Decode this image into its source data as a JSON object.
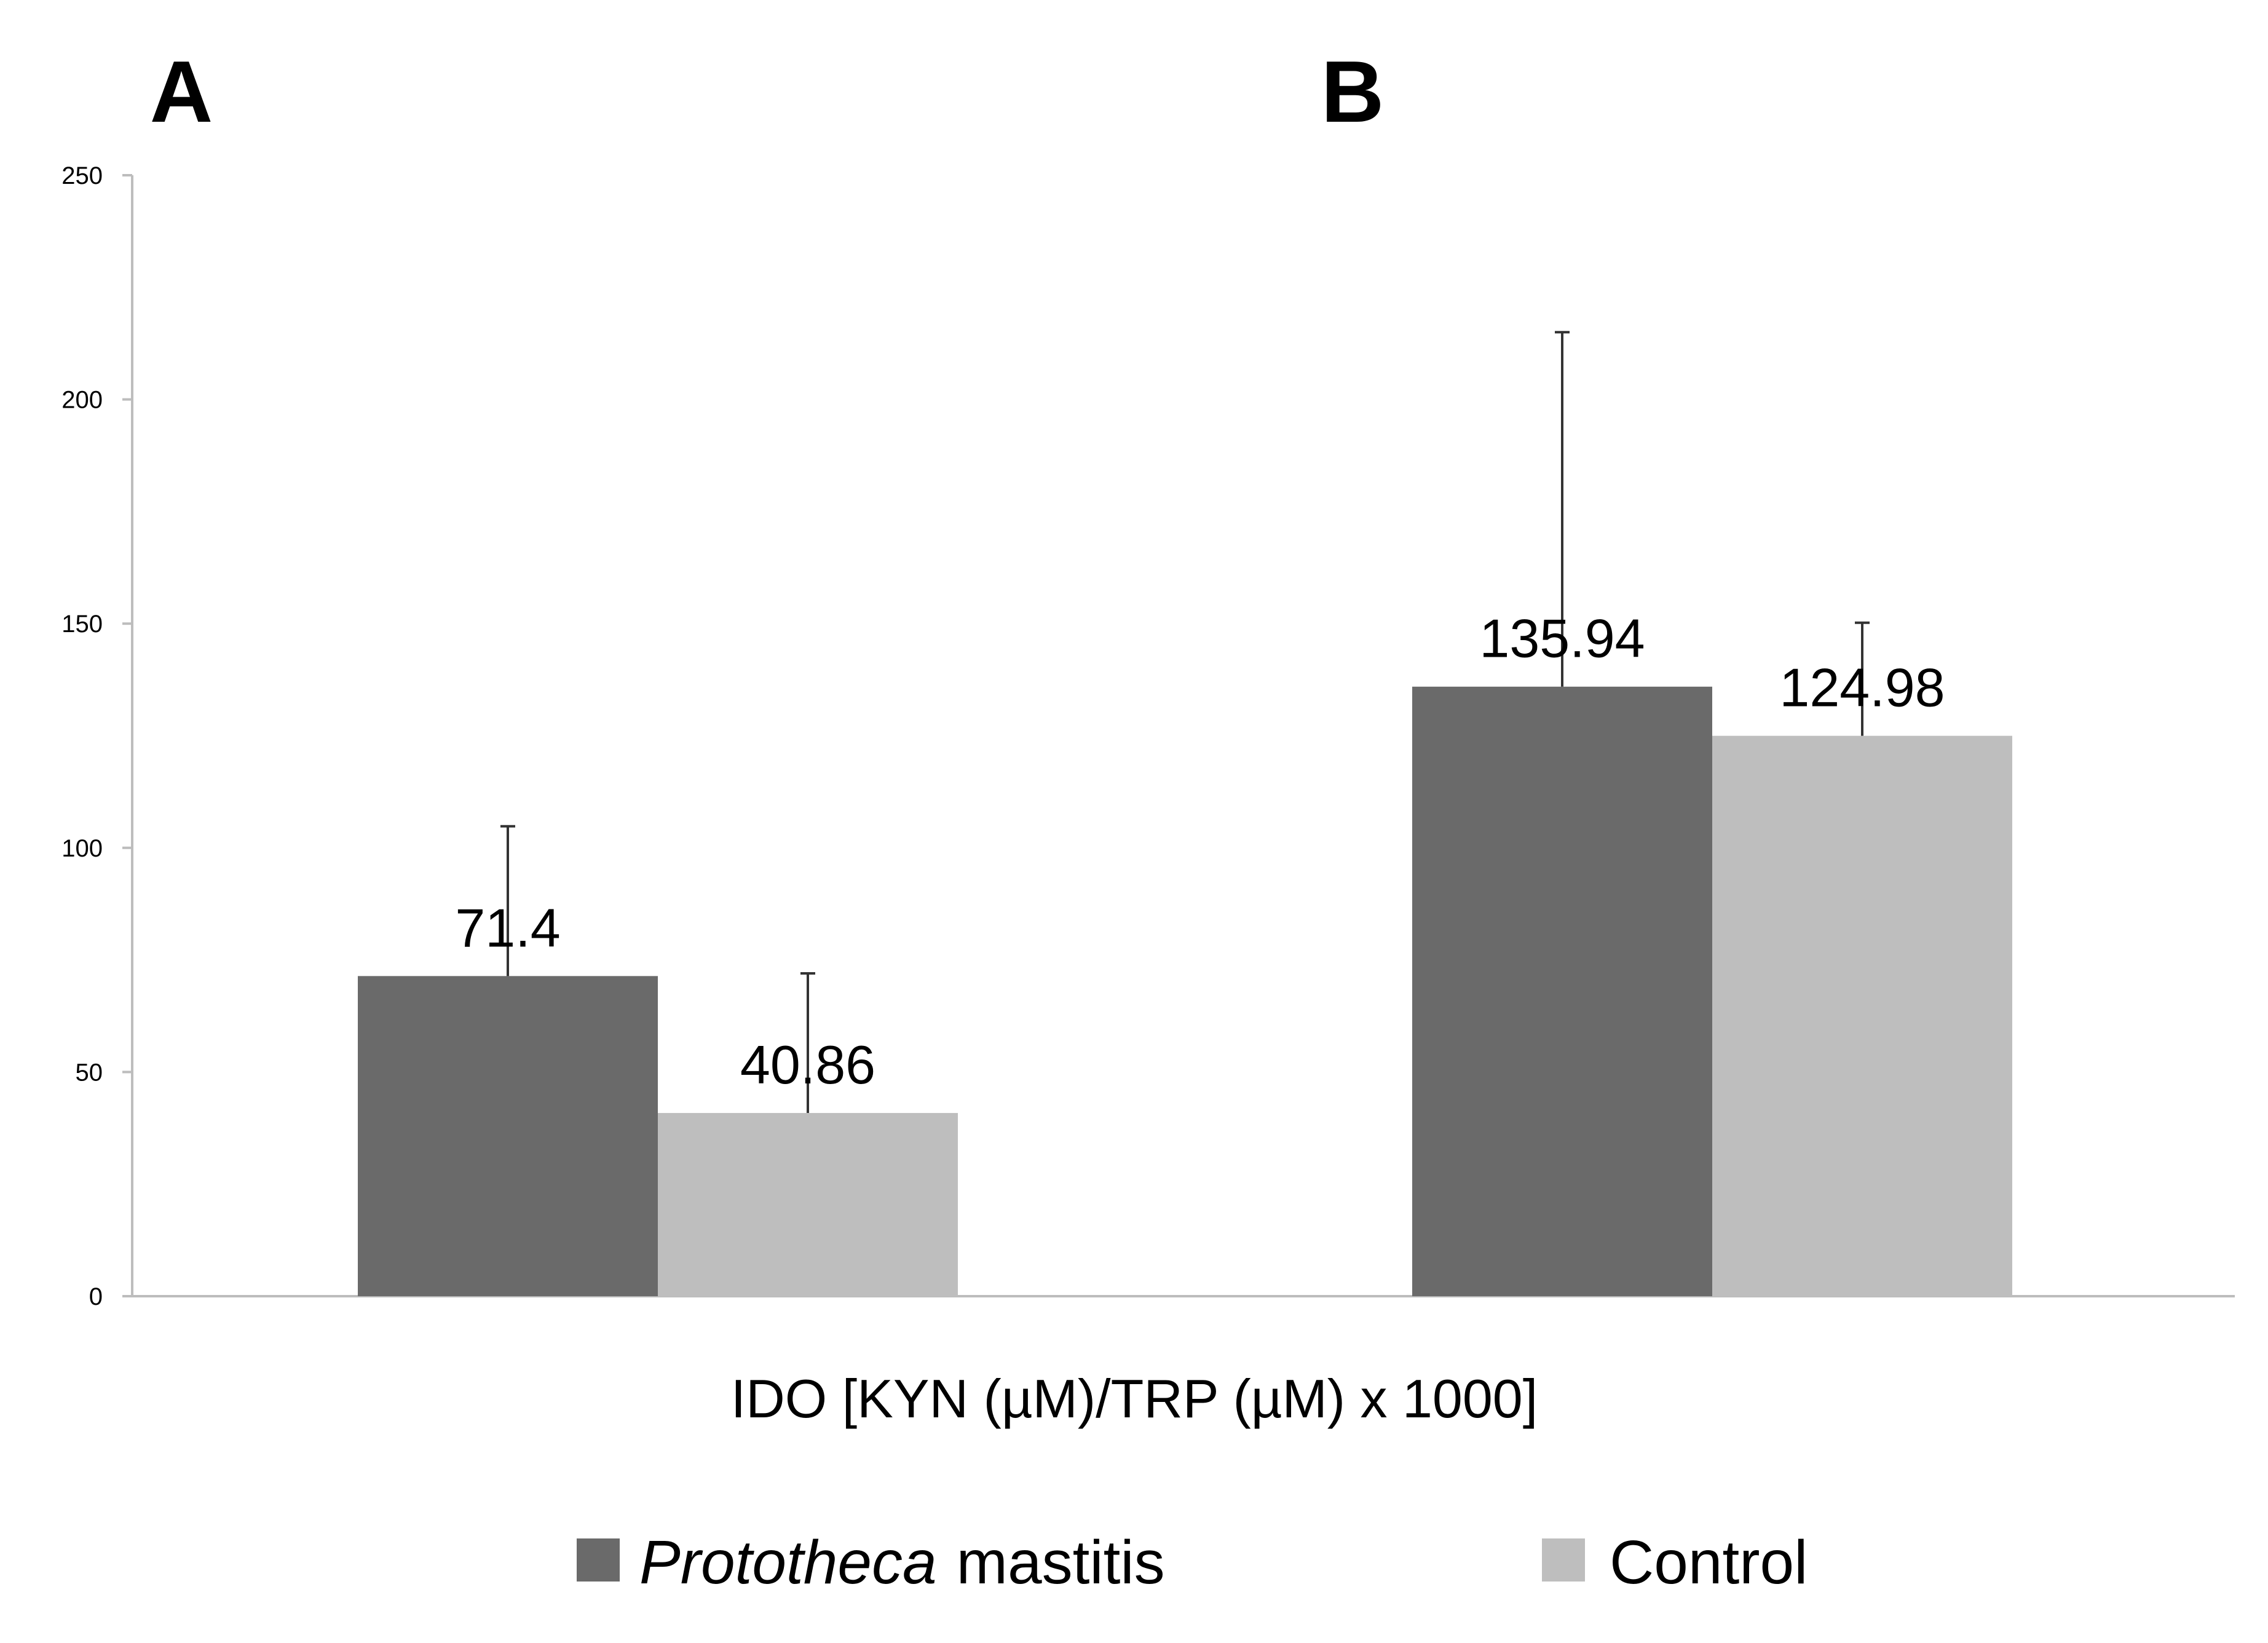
{
  "panel_labels": [
    "A",
    "B"
  ],
  "chart_data": {
    "type": "bar",
    "title": "",
    "categories": [
      "A",
      "B"
    ],
    "series": [
      {
        "name": "Prototheca mastitis",
        "name_italic": "Prototheca",
        "name_rest": "mastitis",
        "values": [
          71.4,
          135.94
        ],
        "error_upper": [
          104.8,
          215.0
        ],
        "color": "#6a6a6a"
      },
      {
        "name": "Control",
        "values": [
          40.86,
          124.98
        ],
        "error_upper": [
          72.0,
          150.2
        ],
        "color": "#bebebe"
      }
    ],
    "data_labels": [
      [
        "71.4",
        "135.94"
      ],
      [
        "40.86",
        "124.98"
      ]
    ],
    "xlabel": "IDO [KYN (µM)/TRP (µM) x 1000]",
    "ylabel": "",
    "ylim": [
      0,
      250
    ],
    "yticks": [
      0,
      50,
      100,
      150,
      200,
      250
    ],
    "grid": false,
    "legend": "bottom"
  },
  "colors": {
    "axis": "#bdbdbd",
    "error_bar": "#333333",
    "text": "#000000"
  }
}
